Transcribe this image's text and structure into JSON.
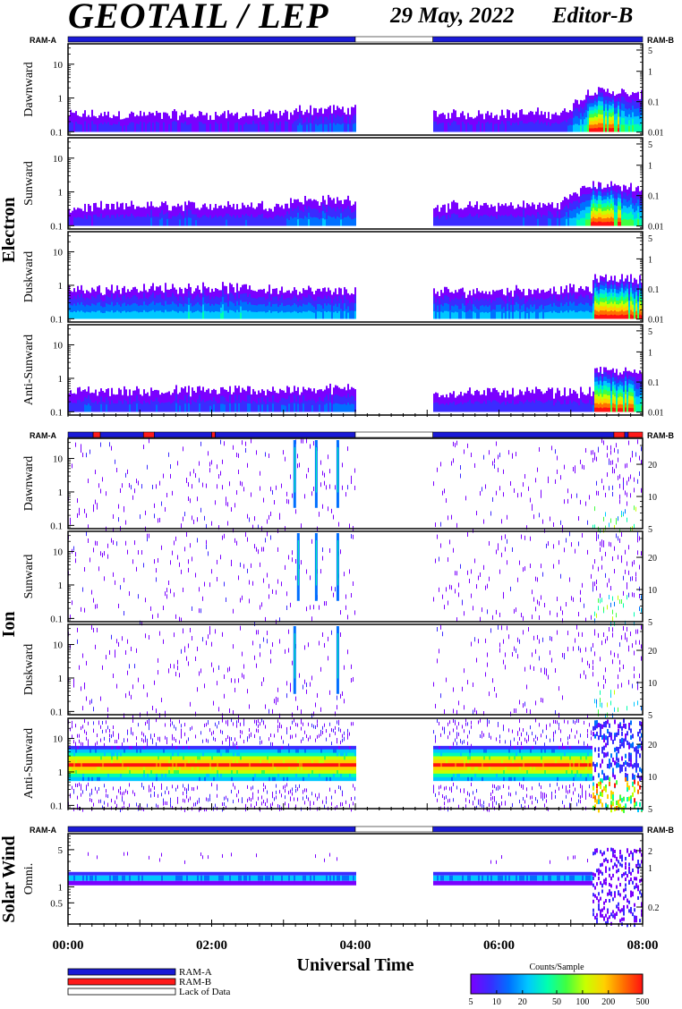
{
  "header": {
    "instrument": "GEOTAIL / LEP",
    "date": "29 May, 2022",
    "editor": "Editor-B"
  },
  "colors": {
    "ram_a": "#1a1ad6",
    "ram_b": "#ff1a1a",
    "lack": "#ffffff",
    "colorbar_stops": [
      "#7a00ff",
      "#3b2bff",
      "#0070ff",
      "#00c8ff",
      "#00ffb0",
      "#40ff40",
      "#c8ff00",
      "#ffd000",
      "#ff7000",
      "#ff1010"
    ]
  },
  "chart_data": {
    "type": "heatmap",
    "xlabel": "Universal Time",
    "x_ticks": [
      "00:00",
      "02:00",
      "04:00",
      "06:00",
      "08:00"
    ],
    "x_range_hours": [
      0,
      8
    ],
    "data_gap_hours": [
      4.0,
      5.08
    ],
    "groups": [
      {
        "name": "Electron",
        "ram_left": "RAM-A",
        "ram_right": "RAM-B",
        "ram_segments": [
          {
            "start": 0.0,
            "end": 4.0,
            "mode": "ram_a"
          },
          {
            "start": 4.0,
            "end": 5.08,
            "mode": "lack"
          },
          {
            "start": 5.08,
            "end": 8.0,
            "mode": "ram_a"
          }
        ],
        "left_ticks": [
          "0.1",
          "1",
          "10"
        ],
        "left_range": [
          0.08,
          40
        ],
        "right_ticks": [
          "0.01",
          "0.1",
          "1",
          "5"
        ],
        "right_range": [
          0.008,
          8
        ],
        "panels": [
          {
            "label": "Dawnward",
            "profile": [
              [
                0,
                0.6
              ],
              [
                3.1,
                0.6
              ],
              [
                3.2,
                1.6
              ],
              [
                4.0,
                1.6
              ],
              [
                5.08,
                0.7
              ],
              [
                6.9,
                0.9
              ],
              [
                7.3,
                5.6
              ],
              [
                8.0,
                4.0
              ]
            ]
          },
          {
            "label": "Sunward",
            "profile": [
              [
                0,
                0.7
              ],
              [
                1.2,
                1.2
              ],
              [
                3.0,
                1.2
              ],
              [
                3.1,
                2.2
              ],
              [
                4.0,
                2.2
              ],
              [
                5.08,
                1.0
              ],
              [
                6.8,
                1.3
              ],
              [
                7.3,
                5.6
              ],
              [
                8.0,
                4.2
              ]
            ]
          },
          {
            "label": "Duskward",
            "profile": [
              [
                0,
                2.8
              ],
              [
                2.0,
                3.3
              ],
              [
                3.5,
                2.6
              ],
              [
                4.0,
                2.6
              ],
              [
                5.08,
                2.4
              ],
              [
                7.3,
                3.0
              ],
              [
                7.31,
                5.8
              ],
              [
                8.0,
                5.0
              ]
            ]
          },
          {
            "label": "Anti-Sunward",
            "profile": [
              [
                0,
                1.2
              ],
              [
                3.3,
                1.5
              ],
              [
                4.0,
                1.8
              ],
              [
                5.08,
                1.0
              ],
              [
                7.3,
                1.1
              ],
              [
                7.31,
                5.6
              ],
              [
                8.0,
                4.6
              ]
            ]
          }
        ]
      },
      {
        "name": "Ion",
        "ram_left": "RAM-A",
        "ram_right": "RAM-B",
        "ram_segments": [
          {
            "start": 0.0,
            "end": 0.35,
            "mode": "ram_a"
          },
          {
            "start": 0.35,
            "end": 0.45,
            "mode": "ram_b"
          },
          {
            "start": 0.45,
            "end": 1.05,
            "mode": "ram_a"
          },
          {
            "start": 1.05,
            "end": 1.2,
            "mode": "ram_b"
          },
          {
            "start": 1.2,
            "end": 2.0,
            "mode": "ram_a"
          },
          {
            "start": 2.0,
            "end": 2.05,
            "mode": "ram_b"
          },
          {
            "start": 2.05,
            "end": 4.0,
            "mode": "ram_a"
          },
          {
            "start": 4.0,
            "end": 5.08,
            "mode": "lack"
          },
          {
            "start": 5.08,
            "end": 7.6,
            "mode": "ram_a"
          },
          {
            "start": 7.6,
            "end": 7.75,
            "mode": "ram_b"
          },
          {
            "start": 7.75,
            "end": 7.8,
            "mode": "ram_a"
          },
          {
            "start": 7.8,
            "end": 8.0,
            "mode": "ram_b"
          }
        ],
        "left_ticks": [
          "0.1",
          "1",
          "10"
        ],
        "left_range": [
          0.08,
          40
        ],
        "right_ticks": [
          "5",
          "10",
          "20"
        ],
        "right_range": [
          5,
          35
        ],
        "panels": [
          {
            "label": "Dawnward",
            "sparse": true,
            "bursts": [
              3.15,
              3.45,
              3.75
            ],
            "storm_start": 7.3
          },
          {
            "label": "Sunward",
            "sparse": true,
            "bursts": [
              3.2,
              3.45,
              3.75
            ],
            "storm_start": 7.3
          },
          {
            "label": "Duskward",
            "sparse": true,
            "bursts": [
              3.15,
              3.75
            ],
            "storm_start": 7.3
          },
          {
            "label": "Anti-Sunward",
            "band": true,
            "storm_start": 7.3
          }
        ]
      },
      {
        "name": "Solar Wind",
        "ram_left": "RAM-A",
        "ram_right": "RAM-B",
        "ram_segments": [
          {
            "start": 0.0,
            "end": 4.0,
            "mode": "ram_a"
          },
          {
            "start": 4.0,
            "end": 5.08,
            "mode": "lack"
          },
          {
            "start": 5.08,
            "end": 8.0,
            "mode": "ram_a"
          }
        ],
        "left_ticks": [
          "0.5",
          "1",
          "5"
        ],
        "left_range": [
          0.2,
          10
        ],
        "right_ticks": [
          "0.2",
          "1",
          "2"
        ],
        "right_range": [
          0.1,
          4
        ],
        "panels": [
          {
            "label": "Omni.",
            "solar": true,
            "storm_start": 7.3
          }
        ]
      }
    ],
    "legend": [
      {
        "label": "RAM-A",
        "color": "#1a1ad6"
      },
      {
        "label": "RAM-B",
        "color": "#ff1a1a"
      },
      {
        "label": "Lack of Data",
        "color": "#ffffff"
      }
    ],
    "colorbar": {
      "title": "Counts/Sample",
      "ticks": [
        "5",
        "10",
        "20",
        "50",
        "100",
        "200",
        "500"
      ],
      "range": [
        5,
        500
      ]
    }
  }
}
